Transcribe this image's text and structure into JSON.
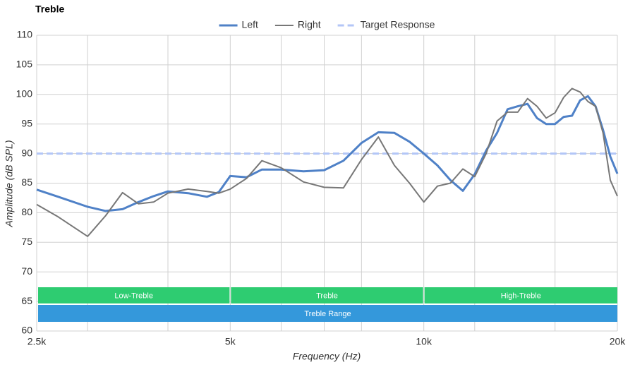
{
  "chart_data": {
    "type": "line",
    "title": "Treble",
    "xlabel": "Frequency (Hz)",
    "ylabel": "Amplitude (dB SPL)",
    "xscale": "log",
    "xlim": [
      2500,
      20000
    ],
    "xticks": [
      {
        "value": 2500,
        "label": "2.5k"
      },
      {
        "value": 5000,
        "label": "5k"
      },
      {
        "value": 10000,
        "label": "10k"
      },
      {
        "value": 20000,
        "label": "20k"
      }
    ],
    "x_gridlines": [
      3000,
      4000,
      6000,
      7000,
      8000,
      12000,
      16000
    ],
    "ylim": [
      60,
      110
    ],
    "yticks": [
      60,
      65,
      70,
      75,
      80,
      85,
      90,
      95,
      100,
      105,
      110
    ],
    "grid": true,
    "legend": "top",
    "bands": [
      {
        "label": "Low-Treble",
        "start": 2500,
        "end": 5000,
        "color": "#2ecc71"
      },
      {
        "label": "Treble",
        "start": 5000,
        "end": 10000,
        "color": "#2ecc71"
      },
      {
        "label": "High-Treble",
        "start": 10000,
        "end": 20000,
        "color": "#2ecc71"
      },
      {
        "label": "Treble Range",
        "start": 2500,
        "end": 20000,
        "color": "#3498db"
      }
    ],
    "series": [
      {
        "name": "Left",
        "color": "#4f81c7",
        "width": 3,
        "dashed": false,
        "x": [
          2500,
          2700,
          3000,
          3200,
          3400,
          3600,
          3800,
          4000,
          4300,
          4600,
          4800,
          5000,
          5300,
          5600,
          6000,
          6500,
          7000,
          7500,
          8000,
          8500,
          9000,
          9500,
          10000,
          10500,
          11000,
          11500,
          12000,
          12500,
          13000,
          13500,
          14000,
          14500,
          15000,
          15500,
          16000,
          16500,
          17000,
          17500,
          18000,
          18500,
          19000,
          19500,
          20000
        ],
        "values": [
          83.9,
          82.7,
          81.0,
          80.3,
          80.6,
          81.8,
          82.8,
          83.6,
          83.3,
          82.7,
          83.5,
          86.2,
          86.0,
          87.3,
          87.3,
          87.0,
          87.2,
          88.8,
          91.8,
          93.6,
          93.5,
          92.0,
          90.0,
          88.0,
          85.5,
          83.7,
          86.5,
          90.5,
          93.5,
          97.5,
          98.0,
          98.4,
          96.0,
          95.0,
          95.0,
          96.2,
          96.4,
          99.0,
          99.7,
          98.0,
          94.0,
          89.5,
          86.6
        ]
      },
      {
        "name": "Right",
        "color": "#777777",
        "width": 2,
        "dashed": false,
        "x": [
          2500,
          2700,
          3000,
          3200,
          3400,
          3600,
          3800,
          4000,
          4300,
          4600,
          4800,
          5000,
          5300,
          5600,
          6000,
          6500,
          7000,
          7500,
          8000,
          8500,
          9000,
          9500,
          10000,
          10500,
          11000,
          11500,
          12000,
          12500,
          13000,
          13500,
          14000,
          14500,
          15000,
          15500,
          16000,
          16500,
          17000,
          17500,
          18000,
          18500,
          19000,
          19500,
          20000
        ],
        "values": [
          81.4,
          79.3,
          76.0,
          79.5,
          83.4,
          81.5,
          81.8,
          83.3,
          84.0,
          83.6,
          83.3,
          84.0,
          85.8,
          88.8,
          87.6,
          85.2,
          84.3,
          84.2,
          89.0,
          92.8,
          88.0,
          85.0,
          81.8,
          84.5,
          85.0,
          87.4,
          86.1,
          90.0,
          95.5,
          97.0,
          97.0,
          99.3,
          98.0,
          96.0,
          96.9,
          99.5,
          101.0,
          100.4,
          98.8,
          98.0,
          93.5,
          85.5,
          82.8
        ]
      },
      {
        "name": "Target Response",
        "color": "#b3c6f7",
        "width": 3,
        "dashed": true,
        "x": [
          2500,
          20000
        ],
        "values": [
          90,
          90
        ]
      }
    ]
  }
}
